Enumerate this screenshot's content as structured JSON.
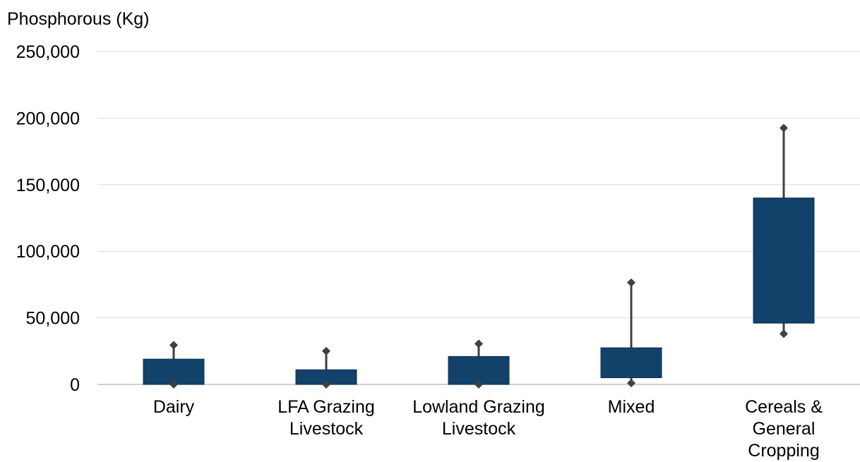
{
  "chart_data": {
    "type": "box",
    "ylabel": "Phosphorous (Kg)",
    "ylim": [
      0,
      250000
    ],
    "yticks": [
      0,
      50000,
      100000,
      150000,
      200000,
      250000
    ],
    "ytick_labels": [
      "0",
      "50,000",
      "100,000",
      "150,000",
      "200,000",
      "250,000"
    ],
    "grid": true,
    "categories": [
      [
        "Dairy"
      ],
      [
        "LFA Grazing",
        "Livestock"
      ],
      [
        "Lowland Grazing",
        "Livestock"
      ],
      [
        "Mixed"
      ],
      [
        "Cereals &",
        "General",
        "Cropping"
      ]
    ],
    "boxes": [
      {
        "min": 0,
        "q1": 0,
        "q3": 19000,
        "max": 29500
      },
      {
        "min": 0,
        "q1": 0,
        "q3": 11000,
        "max": 25000
      },
      {
        "min": 0,
        "q1": 0,
        "q3": 21000,
        "max": 30500
      },
      {
        "min": 1000,
        "q1": 5000,
        "q3": 27500,
        "max": 76500
      },
      {
        "min": 38000,
        "q1": 46000,
        "q3": 140000,
        "max": 192500
      }
    ],
    "colors": {
      "box": "#12416a",
      "whisker": "#404040",
      "grid": "#d9d9d9",
      "axis": "#bfbfbf"
    }
  }
}
